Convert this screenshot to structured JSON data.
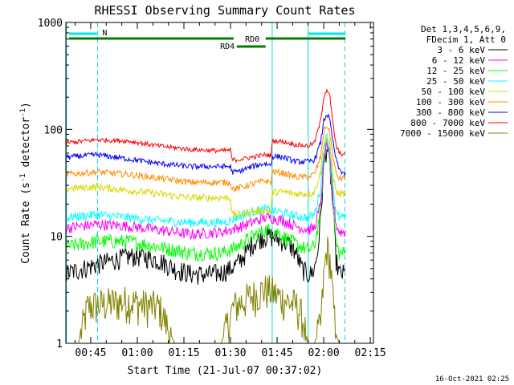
{
  "chart_data": {
    "type": "line",
    "title": "RHESSI Observing Summary Count Rates",
    "xlabel": "Start Time (21-Jul-07 00:37:02)",
    "ylabel_main": "Count Rate (s",
    "ylabel_sup1": "-1",
    "ylabel_mid": " detector",
    "ylabel_sup2": "-1",
    "ylabel_end": ")",
    "yscale": "log",
    "ylim": [
      1,
      1000
    ],
    "xlim": [
      "00:37:02",
      "02:16:00"
    ],
    "x_ticks": [
      "00:45",
      "01:00",
      "01:15",
      "01:30",
      "01:45",
      "02:00",
      "02:15"
    ],
    "x_tick_values": [
      8,
      23,
      38,
      53,
      68,
      83,
      98
    ],
    "y_ticks": [
      "1",
      "10",
      "100",
      "1000"
    ],
    "y_tick_values": [
      1,
      10,
      100,
      1000
    ],
    "legend_header": [
      "Det 1,3,4,5,6,9,",
      "FDecim 1, Att 0"
    ],
    "legend_placement": "right",
    "timestamp": "16-Oct-2021 02:25",
    "vlines_minutes": [
      0.2,
      10.2,
      66.4,
      78.0,
      89.8
    ],
    "annotations": [
      {
        "label": "N",
        "color": "#00e5e5",
        "segments": [
          [
            1,
            10
          ],
          [
            78,
            90
          ]
        ]
      },
      {
        "label": "RD0",
        "color": "#008000",
        "segments": [
          [
            1,
            54
          ],
          [
            64.3,
            90
          ]
        ]
      },
      {
        "label": "RD4",
        "color": "#008000",
        "segments": [
          [
            55,
            64.3
          ]
        ]
      }
    ],
    "series": [
      {
        "name": "3 - 6 keV",
        "color": "#000000",
        "x": [
          0,
          10,
          20,
          25,
          30,
          35,
          40,
          45,
          50,
          53,
          55,
          58,
          60,
          62,
          64,
          66,
          68,
          70,
          72,
          74,
          76,
          78,
          79,
          80,
          81,
          82,
          83,
          84,
          85,
          86,
          87,
          88,
          89,
          90
        ],
        "y": [
          4.5,
          5.5,
          6.5,
          6.5,
          6,
          5,
          4.5,
          4.4,
          4.6,
          5,
          5.5,
          7,
          8.5,
          9.5,
          10,
          10,
          9.5,
          9,
          8.5,
          7,
          5,
          4.4,
          4.5,
          5,
          7,
          15,
          45,
          70,
          45,
          18,
          6,
          4.5,
          4.5,
          4.5
        ]
      },
      {
        "name": "6 - 12 keV",
        "color": "#ff00ff",
        "x": [
          0,
          10,
          20,
          30,
          40,
          50,
          53,
          55,
          60,
          64,
          66,
          68,
          70,
          74,
          78,
          80,
          82,
          83,
          84,
          85,
          86,
          87,
          88,
          90
        ],
        "y": [
          12,
          13,
          12.5,
          11.5,
          10.5,
          11,
          11.5,
          12,
          13.5,
          15,
          15,
          14.5,
          14,
          12.5,
          11.5,
          12,
          20,
          50,
          75,
          50,
          22,
          13,
          11,
          11
        ]
      },
      {
        "name": "12 - 25 keV",
        "color": "#00ff00",
        "x": [
          0,
          10,
          20,
          30,
          40,
          50,
          53,
          55,
          60,
          64,
          66,
          68,
          70,
          74,
          78,
          80,
          82,
          83,
          84,
          85,
          86,
          87,
          88,
          90
        ],
        "y": [
          8,
          9,
          9,
          8,
          7,
          7,
          7.5,
          8,
          10,
          11.5,
          11.5,
          11,
          10,
          8.5,
          7.5,
          8,
          18,
          50,
          80,
          55,
          20,
          8.5,
          7,
          7
        ]
      },
      {
        "name": "25 - 50 keV",
        "color": "#00ffff",
        "x": [
          0,
          10,
          20,
          30,
          40,
          50,
          53,
          55,
          60,
          64,
          66,
          68,
          70,
          74,
          78,
          80,
          82,
          83,
          84,
          85,
          86,
          87,
          88,
          90
        ],
        "y": [
          15,
          16,
          15,
          14,
          13.5,
          13.5,
          14,
          15,
          17,
          18,
          17.5,
          17,
          16.5,
          15.5,
          15,
          16,
          28,
          65,
          90,
          65,
          30,
          16,
          15,
          15
        ]
      },
      {
        "name": "50 - 100 keV",
        "color": "#d8d800",
        "x": [
          0,
          10,
          20,
          30,
          40,
          50,
          53,
          53.5,
          55,
          60,
          64,
          66,
          66.5,
          68,
          70,
          74,
          78,
          80,
          82,
          83,
          84,
          85,
          86,
          87,
          88,
          90
        ],
        "y": [
          28,
          29,
          27,
          25,
          23,
          23,
          23,
          16,
          16,
          17,
          17.5,
          17,
          26,
          26,
          26,
          25,
          25,
          26,
          40,
          75,
          85,
          70,
          38,
          26,
          25,
          25
        ]
      },
      {
        "name": "100 - 300 keV",
        "color": "#ff8c00",
        "x": [
          0,
          10,
          20,
          30,
          40,
          50,
          53,
          53.5,
          55,
          60,
          64,
          66,
          66.5,
          68,
          70,
          74,
          78,
          80,
          82,
          83,
          84,
          85,
          86,
          87,
          88,
          90
        ],
        "y": [
          38,
          40,
          38,
          35,
          32,
          32,
          32,
          28,
          28,
          31,
          33,
          32,
          40,
          40,
          39,
          36,
          36,
          38,
          55,
          95,
          110,
          90,
          55,
          38,
          35,
          35
        ]
      },
      {
        "name": "300 - 800 keV",
        "color": "#0000ff",
        "x": [
          0,
          10,
          20,
          30,
          40,
          50,
          53,
          53.5,
          55,
          60,
          64,
          66,
          66.5,
          68,
          70,
          74,
          78,
          80,
          82,
          83,
          84,
          85,
          86,
          87,
          88,
          90
        ],
        "y": [
          55,
          58,
          53,
          48,
          45,
          45,
          45,
          40,
          40,
          45,
          48,
          46,
          56,
          56,
          55,
          50,
          50,
          52,
          75,
          120,
          140,
          120,
          75,
          52,
          42,
          38
        ]
      },
      {
        "name": "800 - 7000 keV",
        "color": "#ff0000",
        "x": [
          0,
          10,
          20,
          30,
          40,
          50,
          53,
          53.5,
          55,
          60,
          64,
          66,
          66.5,
          68,
          70,
          74,
          78,
          80,
          82,
          83,
          84,
          85,
          86,
          87,
          88,
          90
        ],
        "y": [
          75,
          80,
          78,
          70,
          65,
          63,
          64,
          52,
          52,
          55,
          58,
          57,
          78,
          78,
          77,
          72,
          70,
          75,
          120,
          200,
          240,
          200,
          110,
          70,
          60,
          58
        ]
      },
      {
        "name": "7000 - 15000 keV",
        "color": "#808000",
        "x": [
          4,
          7,
          10,
          15,
          20,
          25,
          30,
          35,
          40,
          45,
          50,
          52,
          54,
          56,
          58,
          60,
          62,
          64,
          66,
          68,
          70,
          72,
          74,
          76,
          78,
          80,
          82,
          83,
          84,
          85,
          86,
          87,
          88
        ],
        "y": [
          1,
          2.2,
          2.3,
          2.4,
          2.5,
          2.3,
          2.2,
          1,
          1,
          1,
          1,
          1.5,
          2.2,
          2.4,
          2.6,
          2.8,
          3,
          3.2,
          3.1,
          2.8,
          2.6,
          2.4,
          2.3,
          1.8,
          1,
          1,
          1.5,
          4,
          8,
          6,
          2.5,
          1.2,
          1
        ]
      }
    ]
  }
}
